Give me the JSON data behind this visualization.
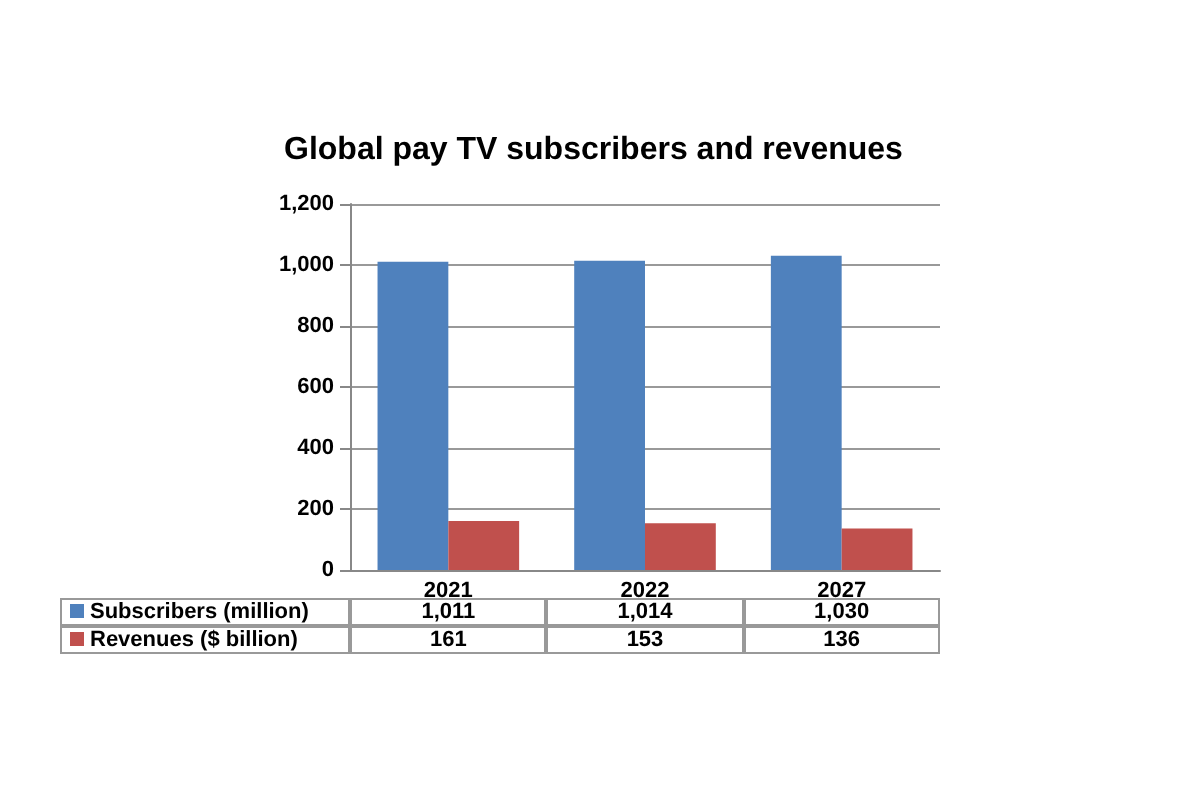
{
  "chart_data": {
    "type": "bar",
    "title": "Global pay TV subscribers and revenues",
    "categories": [
      "2021",
      "2022",
      "2027"
    ],
    "series": [
      {
        "name": "Subscribers (million)",
        "color": "#4f81bd",
        "values": [
          1011,
          1014,
          1030
        ],
        "value_labels": [
          "1,011",
          "1,014",
          "1,030"
        ]
      },
      {
        "name": "Revenues ($ billion)",
        "color": "#c0504d",
        "values": [
          161,
          153,
          136
        ],
        "value_labels": [
          "161",
          "153",
          "136"
        ]
      }
    ],
    "ylim": [
      0,
      1200
    ],
    "yticks": [
      {
        "value": 0,
        "label": "0"
      },
      {
        "value": 200,
        "label": "200"
      },
      {
        "value": 400,
        "label": "400"
      },
      {
        "value": 600,
        "label": "600"
      },
      {
        "value": 800,
        "label": "800"
      },
      {
        "value": 1000,
        "label": "1,000"
      },
      {
        "value": 1200,
        "label": "1,200"
      }
    ],
    "grid": "y",
    "legend": "bottom"
  }
}
